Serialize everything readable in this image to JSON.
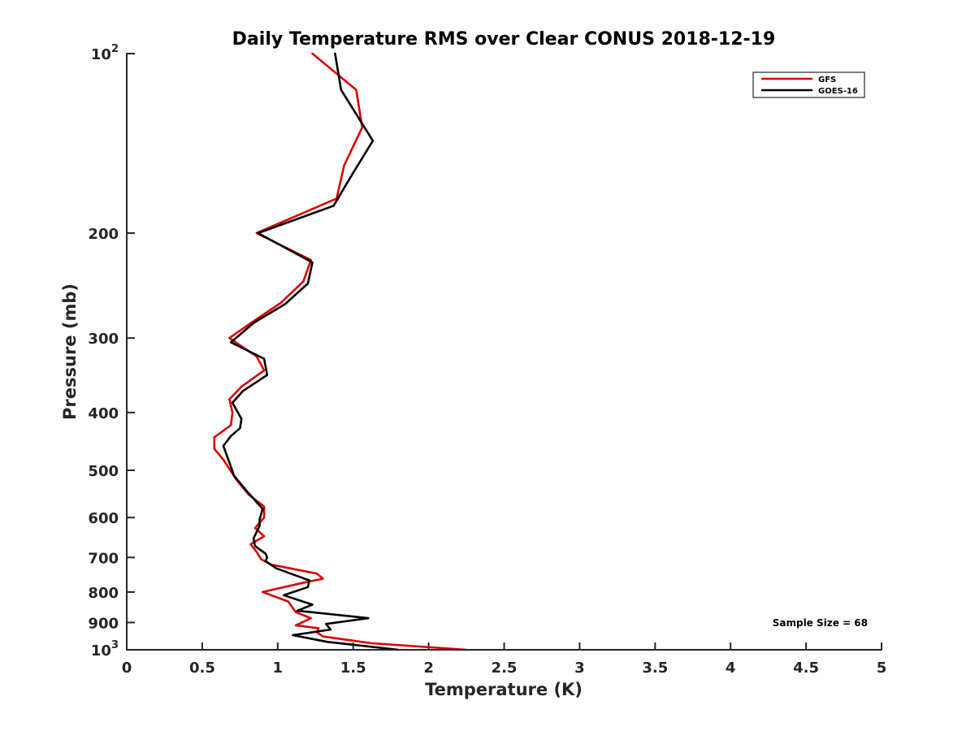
{
  "chart_data": {
    "type": "line",
    "title": "Daily Temperature RMS over Clear CONUS 2018-12-19",
    "xlabel": "Temperature (K)",
    "ylabel": "Pressure (mb)",
    "xlim": [
      0,
      5
    ],
    "ylim": [
      100,
      1000
    ],
    "y_scale": "log",
    "y_reversed": true,
    "grid": false,
    "legend_position": "top-right",
    "x_ticks": [
      0,
      0.5,
      1,
      1.5,
      2,
      2.5,
      3,
      3.5,
      4,
      4.5,
      5
    ],
    "x_tick_labels": [
      "0",
      "0.5",
      "1",
      "1.5",
      "2",
      "2.5",
      "3",
      "3.5",
      "4",
      "4.5",
      "5"
    ],
    "y_ticks": [
      {
        "value": 100,
        "base": "10",
        "exp": "2"
      },
      {
        "value": 200,
        "label": "200"
      },
      {
        "value": 300,
        "label": "300"
      },
      {
        "value": 400,
        "label": "400"
      },
      {
        "value": 500,
        "label": "500"
      },
      {
        "value": 600,
        "label": "600"
      },
      {
        "value": 700,
        "label": "700"
      },
      {
        "value": 800,
        "label": "800"
      },
      {
        "value": 900,
        "label": "900"
      },
      {
        "value": 1000,
        "base": "10",
        "exp": "3"
      }
    ],
    "series": [
      {
        "name": "GFS",
        "color": "#dd0000",
        "points": [
          [
            1.23,
            100
          ],
          [
            1.52,
            115
          ],
          [
            1.56,
            133
          ],
          [
            1.44,
            154
          ],
          [
            1.39,
            175
          ],
          [
            0.86,
            200
          ],
          [
            1.22,
            222
          ],
          [
            1.17,
            241
          ],
          [
            1.02,
            262
          ],
          [
            0.84,
            281
          ],
          [
            0.68,
            300
          ],
          [
            0.86,
            322
          ],
          [
            0.91,
            340
          ],
          [
            0.76,
            362
          ],
          [
            0.68,
            380
          ],
          [
            0.7,
            400
          ],
          [
            0.69,
            420
          ],
          [
            0.58,
            440
          ],
          [
            0.58,
            460
          ],
          [
            0.64,
            480
          ],
          [
            0.73,
            520
          ],
          [
            0.81,
            550
          ],
          [
            0.91,
            575
          ],
          [
            0.91,
            600
          ],
          [
            0.85,
            625
          ],
          [
            0.91,
            645
          ],
          [
            0.82,
            665
          ],
          [
            0.86,
            685
          ],
          [
            0.89,
            705
          ],
          [
            0.96,
            720
          ],
          [
            1.26,
            745
          ],
          [
            1.3,
            760
          ],
          [
            1.14,
            775
          ],
          [
            0.9,
            800
          ],
          [
            1.07,
            830
          ],
          [
            1.12,
            865
          ],
          [
            1.22,
            885
          ],
          [
            1.12,
            910
          ],
          [
            1.27,
            920
          ],
          [
            1.26,
            935
          ],
          [
            1.3,
            950
          ],
          [
            1.62,
            975
          ],
          [
            2.25,
            1000
          ]
        ]
      },
      {
        "name": "GOES-16",
        "color": "#000000",
        "points": [
          [
            1.38,
            100
          ],
          [
            1.42,
            115
          ],
          [
            1.63,
            140
          ],
          [
            1.49,
            160
          ],
          [
            1.37,
            180
          ],
          [
            0.87,
            200
          ],
          [
            1.23,
            224
          ],
          [
            1.2,
            243
          ],
          [
            1.05,
            263
          ],
          [
            0.84,
            283
          ],
          [
            0.69,
            305
          ],
          [
            0.91,
            325
          ],
          [
            0.93,
            346
          ],
          [
            0.77,
            368
          ],
          [
            0.7,
            385
          ],
          [
            0.76,
            410
          ],
          [
            0.75,
            425
          ],
          [
            0.69,
            438
          ],
          [
            0.64,
            455
          ],
          [
            0.68,
            485
          ],
          [
            0.71,
            510
          ],
          [
            0.79,
            540
          ],
          [
            0.9,
            580
          ],
          [
            0.88,
            605
          ],
          [
            0.88,
            620
          ],
          [
            0.84,
            650
          ],
          [
            0.85,
            670
          ],
          [
            0.92,
            690
          ],
          [
            0.93,
            700
          ],
          [
            0.92,
            710
          ],
          [
            0.99,
            730
          ],
          [
            1.21,
            765
          ],
          [
            1.2,
            785
          ],
          [
            1.04,
            810
          ],
          [
            1.23,
            840
          ],
          [
            1.13,
            860
          ],
          [
            1.6,
            885
          ],
          [
            1.32,
            905
          ],
          [
            1.35,
            925
          ],
          [
            1.1,
            945
          ],
          [
            1.33,
            970
          ],
          [
            1.8,
            1000
          ]
        ]
      }
    ],
    "annotations": [
      {
        "text": "Sample Size = 68",
        "x": 4.5,
        "y": 900
      }
    ]
  }
}
